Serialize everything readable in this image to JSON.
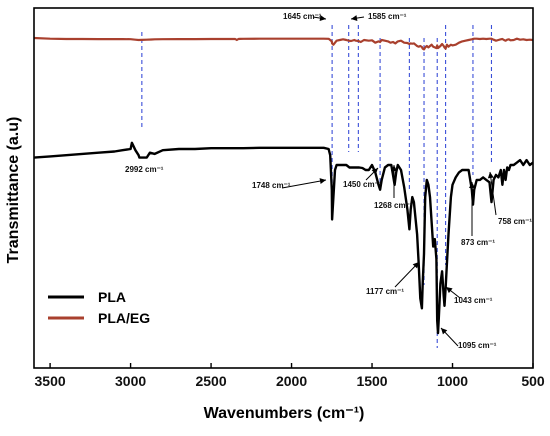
{
  "chart_data": {
    "type": "line",
    "xlabel": "Wavenumbers (cm⁻¹)",
    "ylabel": "Transmittance (a.u)",
    "xlim": [
      3600,
      500
    ],
    "ylim": [
      0,
      1
    ],
    "x_reversed": true,
    "x_ticks": [
      3500,
      3000,
      2500,
      2000,
      1500,
      1000,
      500
    ],
    "x_tick_labels": [
      "3500",
      "3000",
      "2500",
      "2000",
      "1500",
      "1000",
      "500"
    ],
    "y_ticks_shown": false,
    "grid": false,
    "legend": {
      "position": "bottom-left",
      "entries": [
        "PLA",
        "PLA/EG"
      ]
    },
    "series": [
      {
        "name": "PLA",
        "color": "#000000",
        "x": [
          3600,
          3500,
          3400,
          3300,
          3200,
          3100,
          3050,
          3000,
          2992,
          2970,
          2950,
          2945,
          2900,
          2880,
          2850,
          2800,
          2700,
          2600,
          2500,
          2400,
          2300,
          2200,
          2100,
          2000,
          1900,
          1800,
          1770,
          1760,
          1750,
          1748,
          1740,
          1730,
          1720,
          1700,
          1680,
          1660,
          1640,
          1620,
          1600,
          1580,
          1560,
          1540,
          1520,
          1500,
          1480,
          1460,
          1450,
          1440,
          1420,
          1400,
          1380,
          1370,
          1360,
          1350,
          1340,
          1320,
          1300,
          1280,
          1268,
          1260,
          1250,
          1240,
          1220,
          1210,
          1200,
          1190,
          1185,
          1177,
          1170,
          1160,
          1150,
          1140,
          1130,
          1120,
          1110,
          1100,
          1095,
          1090,
          1085,
          1075,
          1065,
          1055,
          1050,
          1043,
          1035,
          1025,
          1010,
          1000,
          980,
          960,
          940,
          920,
          900,
          880,
          873,
          865,
          850,
          830,
          810,
          790,
          770,
          758,
          745,
          730,
          715,
          700,
          690,
          680,
          670,
          660,
          650,
          640,
          620,
          600,
          580,
          560,
          540,
          520,
          500
        ],
        "values": [
          0.71,
          0.715,
          0.72,
          0.725,
          0.73,
          0.735,
          0.74,
          0.745,
          0.77,
          0.74,
          0.72,
          0.71,
          0.71,
          0.73,
          0.725,
          0.74,
          0.745,
          0.745,
          0.748,
          0.748,
          0.748,
          0.75,
          0.75,
          0.75,
          0.75,
          0.75,
          0.745,
          0.72,
          0.58,
          0.46,
          0.55,
          0.66,
          0.68,
          0.68,
          0.68,
          0.68,
          0.67,
          0.67,
          0.67,
          0.67,
          0.668,
          0.66,
          0.66,
          0.68,
          0.65,
          0.6,
          0.58,
          0.62,
          0.67,
          0.68,
          0.68,
          0.64,
          0.6,
          0.65,
          0.68,
          0.66,
          0.59,
          0.5,
          0.42,
          0.5,
          0.55,
          0.53,
          0.4,
          0.28,
          0.14,
          0.1,
          0.2,
          0.32,
          0.55,
          0.62,
          0.6,
          0.55,
          0.45,
          0.35,
          0.38,
          0.3,
          0.05,
          0.0,
          0.06,
          0.2,
          0.25,
          0.15,
          0.11,
          0.18,
          0.28,
          0.4,
          0.55,
          0.6,
          0.63,
          0.65,
          0.66,
          0.66,
          0.66,
          0.58,
          0.52,
          0.58,
          0.62,
          0.62,
          0.63,
          0.62,
          0.61,
          0.53,
          0.62,
          0.64,
          0.63,
          0.66,
          0.6,
          0.66,
          0.62,
          0.67,
          0.66,
          0.68,
          0.68,
          0.69,
          0.7,
          0.68,
          0.7,
          0.68,
          0.69
        ]
      },
      {
        "name": "PLA/EG",
        "color": "#a9402e",
        "x": [
          3600,
          3500,
          3400,
          3300,
          3200,
          3100,
          3050,
          3000,
          2970,
          2950,
          2930,
          2900,
          2870,
          2850,
          2800,
          2700,
          2600,
          2500,
          2400,
          2350,
          2340,
          2330,
          2320,
          2300,
          2200,
          2100,
          2000,
          1900,
          1800,
          1770,
          1760,
          1750,
          1748,
          1740,
          1730,
          1720,
          1700,
          1680,
          1660,
          1645,
          1630,
          1610,
          1600,
          1585,
          1570,
          1550,
          1520,
          1500,
          1480,
          1460,
          1450,
          1440,
          1420,
          1400,
          1385,
          1370,
          1355,
          1340,
          1320,
          1300,
          1280,
          1268,
          1260,
          1250,
          1240,
          1230,
          1220,
          1210,
          1200,
          1190,
          1185,
          1177,
          1170,
          1160,
          1150,
          1140,
          1130,
          1120,
          1110,
          1100,
          1095,
          1090,
          1085,
          1075,
          1065,
          1055,
          1050,
          1043,
          1035,
          1025,
          1010,
          1000,
          980,
          960,
          940,
          920,
          900,
          880,
          873,
          865,
          850,
          830,
          810,
          790,
          770,
          758,
          745,
          730,
          715,
          700,
          690,
          680,
          670,
          660,
          650,
          640,
          620,
          600,
          580,
          560,
          540,
          520,
          500
        ],
        "values": [
          1.0,
          0.99,
          0.985,
          0.985,
          0.984,
          0.984,
          0.983,
          0.982,
          0.975,
          0.97,
          0.972,
          0.975,
          0.978,
          0.98,
          0.982,
          0.983,
          0.984,
          0.985,
          0.985,
          0.985,
          0.97,
          0.985,
          0.986,
          0.988,
          0.99,
          0.99,
          0.99,
          0.99,
          0.99,
          0.988,
          0.97,
          0.95,
          0.92,
          0.9,
          0.93,
          0.96,
          0.97,
          0.98,
          0.97,
          0.96,
          0.955,
          0.97,
          0.96,
          0.955,
          0.94,
          0.97,
          0.96,
          0.965,
          0.93,
          0.95,
          0.94,
          0.97,
          0.96,
          0.95,
          0.93,
          0.94,
          0.92,
          0.95,
          0.96,
          0.93,
          0.925,
          0.91,
          0.92,
          0.915,
          0.92,
          0.9,
          0.88,
          0.87,
          0.88,
          0.865,
          0.84,
          0.83,
          0.86,
          0.88,
          0.86,
          0.88,
          0.9,
          0.87,
          0.86,
          0.85,
          0.89,
          0.85,
          0.86,
          0.88,
          0.91,
          0.88,
          0.86,
          0.84,
          0.9,
          0.87,
          0.9,
          0.89,
          0.9,
          0.93,
          0.95,
          0.96,
          0.97,
          0.98,
          0.985,
          0.99,
          0.99,
          0.985,
          0.99,
          0.985,
          0.99,
          0.99,
          0.975,
          0.96,
          0.97,
          0.98,
          0.985,
          0.97,
          0.96,
          0.975,
          0.98,
          0.965,
          0.97,
          0.99,
          0.975,
          0.98,
          0.97,
          0.975,
          0.97
        ]
      }
    ],
    "annotations": [
      {
        "label": "2992 cm⁻¹",
        "x": 2930,
        "kind": "dashed-line"
      },
      {
        "label": "1748 cm⁻¹",
        "x": 1748,
        "kind": "arrow"
      },
      {
        "label": "1645 cm⁻¹",
        "x": 1645,
        "kind": "dashed-line"
      },
      {
        "label": "1585 cm⁻¹",
        "x": 1585,
        "kind": "dashed-line"
      },
      {
        "label": "1450 cm⁻¹",
        "x": 1450,
        "kind": "arrow"
      },
      {
        "label": "1268 cm⁻¹",
        "x": 1268,
        "kind": "arrow"
      },
      {
        "label": "1177 cm⁻¹",
        "x": 1177,
        "kind": "arrow"
      },
      {
        "label": "1095 cm⁻¹",
        "x": 1095,
        "kind": "arrow"
      },
      {
        "label": "1043 cm⁻¹",
        "x": 1043,
        "kind": "arrow"
      },
      {
        "label": "873 cm⁻¹",
        "x": 873,
        "kind": "arrow"
      },
      {
        "label": "758 cm⁻¹",
        "x": 758,
        "kind": "arrow"
      }
    ],
    "colors": {
      "dashed_line": "#3b4fd8",
      "arrow": "#000000"
    }
  }
}
